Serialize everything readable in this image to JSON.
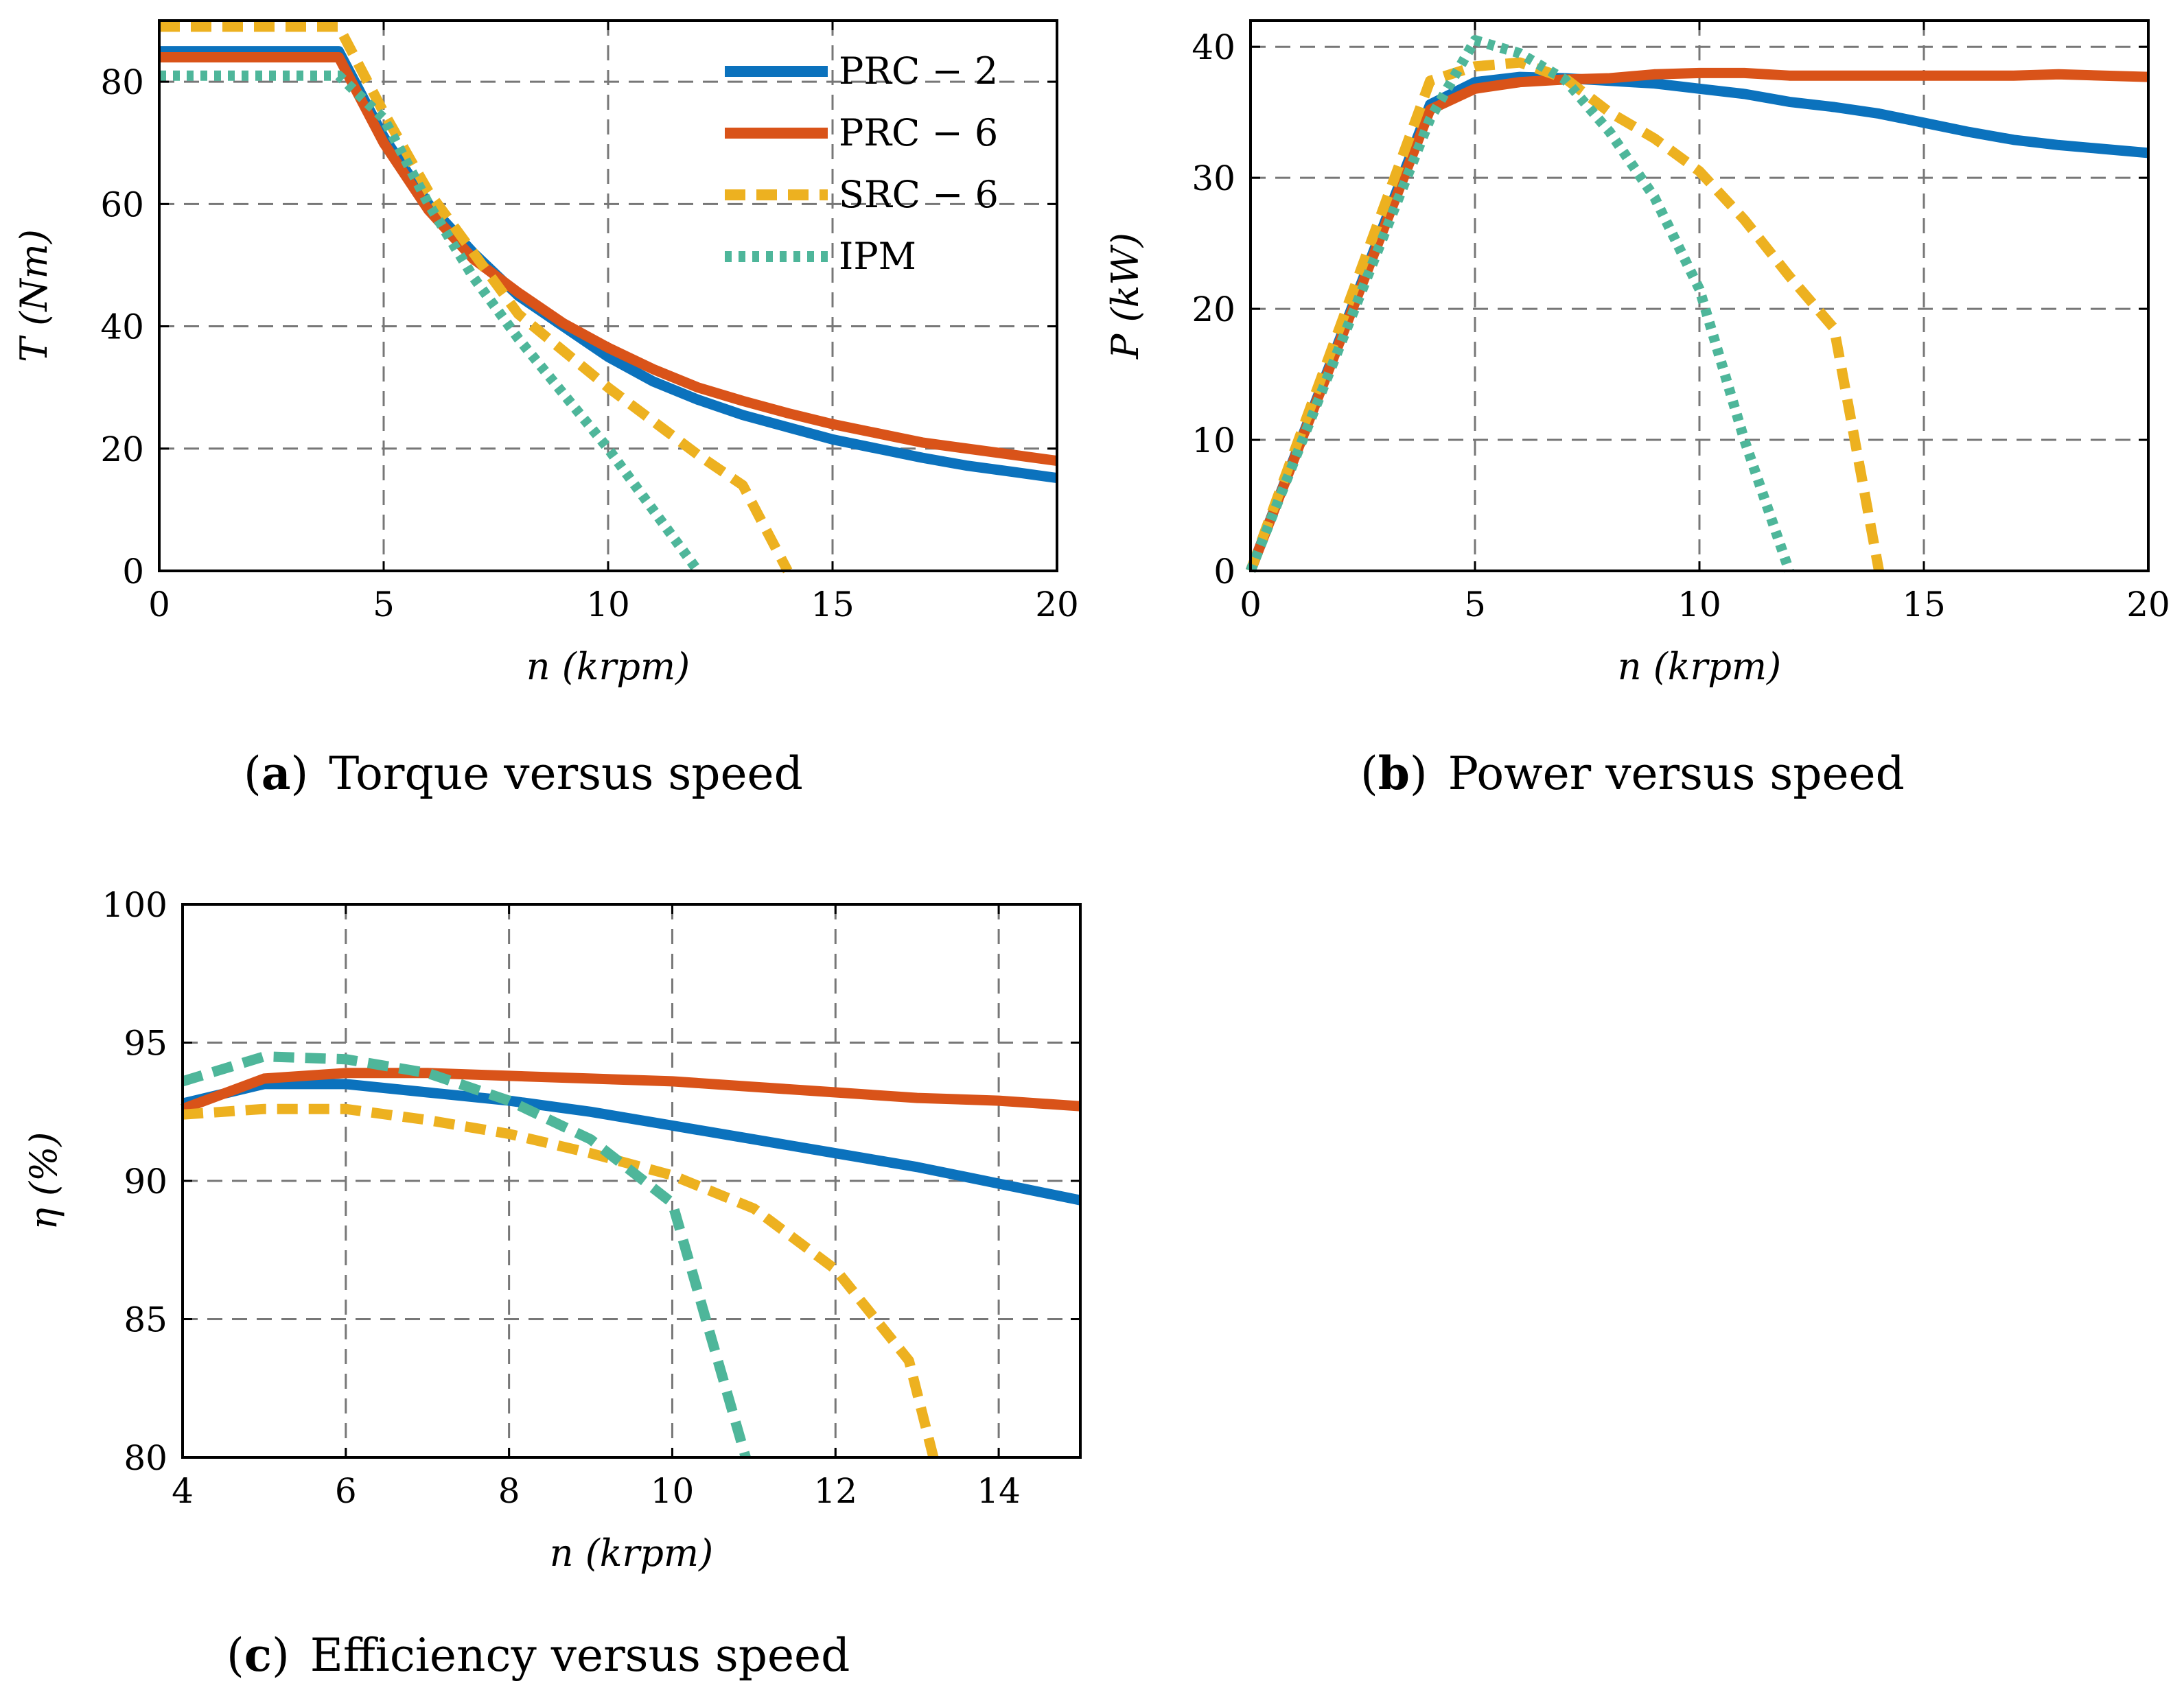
{
  "colors": {
    "PRC - 2": "#0b72bd",
    "PRC - 6": "#d95319",
    "SRC - 6": "#edb120",
    "IPM": "#4eb69a"
  },
  "legend": [
    "PRC − 2",
    "PRC − 6",
    "SRC − 6",
    "IPM"
  ],
  "chart_data": [
    {
      "id": "a",
      "type": "line",
      "caption_letter": "a",
      "caption_text": "Torque versus speed",
      "xlabel": "n (krpm)",
      "ylabel": "T (Nm)",
      "xlim": [
        0,
        20
      ],
      "ylim": [
        0,
        90
      ],
      "xticks": [
        0,
        5,
        10,
        15,
        20
      ],
      "yticks": [
        0,
        20,
        40,
        60,
        80
      ],
      "grid": true,
      "legend_position": "top-right",
      "series": [
        {
          "name": "PRC - 2",
          "style": "solid",
          "x": [
            0,
            4,
            5,
            6,
            7,
            8,
            9,
            10,
            11,
            12,
            13,
            14,
            15,
            16,
            17,
            18,
            19,
            20
          ],
          "y": [
            85,
            85,
            71,
            60,
            52,
            45,
            40,
            35,
            31,
            28,
            25.5,
            23.5,
            21.5,
            20,
            18.5,
            17.2,
            16.2,
            15.2
          ]
        },
        {
          "name": "PRC - 6",
          "style": "solid",
          "x": [
            0,
            4,
            5,
            6,
            7,
            8,
            9,
            10,
            11,
            12,
            13,
            14,
            15,
            16,
            17,
            18,
            19,
            20
          ],
          "y": [
            84,
            84,
            70,
            59,
            51,
            45.5,
            40.5,
            36.5,
            33,
            30,
            27.8,
            25.8,
            24,
            22.5,
            21,
            20,
            19,
            18
          ]
        },
        {
          "name": "SRC - 6",
          "style": "dashed",
          "x": [
            0,
            4,
            5,
            6,
            7,
            8,
            9,
            10,
            11,
            12,
            13,
            14
          ],
          "y": [
            89,
            89,
            75,
            62,
            52,
            42,
            36,
            30,
            24.5,
            19,
            14,
            0
          ]
        },
        {
          "name": "IPM",
          "style": "dotted",
          "x": [
            0,
            4,
            5,
            6,
            7,
            8,
            9,
            10,
            11,
            12
          ],
          "y": [
            81,
            81,
            74,
            60,
            48,
            38,
            29,
            20,
            10,
            0
          ]
        }
      ]
    },
    {
      "id": "b",
      "type": "line",
      "caption_letter": "b",
      "caption_text": "Power versus speed",
      "xlabel": "n (krpm)",
      "ylabel": "P (kW)",
      "xlim": [
        0,
        20
      ],
      "ylim": [
        0,
        42
      ],
      "xticks": [
        0,
        5,
        10,
        15,
        20
      ],
      "yticks": [
        0,
        10,
        20,
        30,
        40
      ],
      "grid": true,
      "legend_position": "none",
      "series": [
        {
          "name": "PRC - 2",
          "style": "solid",
          "x": [
            0,
            4,
            5,
            6,
            7,
            8,
            9,
            10,
            11,
            12,
            13,
            14,
            15,
            16,
            17,
            18,
            19,
            20
          ],
          "y": [
            0,
            35.6,
            37.3,
            37.7,
            37.6,
            37.4,
            37.2,
            36.8,
            36.4,
            35.8,
            35.4,
            34.9,
            34.2,
            33.5,
            32.9,
            32.5,
            32.2,
            31.9
          ]
        },
        {
          "name": "PRC - 6",
          "style": "solid",
          "x": [
            0,
            4,
            5,
            6,
            7,
            8,
            9,
            10,
            11,
            12,
            13,
            14,
            15,
            16,
            17,
            18,
            19,
            20
          ],
          "y": [
            0,
            35.2,
            36.8,
            37.3,
            37.5,
            37.6,
            37.9,
            38,
            38,
            37.8,
            37.8,
            37.8,
            37.8,
            37.8,
            37.8,
            37.9,
            37.8,
            37.7
          ]
        },
        {
          "name": "SRC - 6",
          "style": "dashed",
          "x": [
            0,
            4,
            5,
            6,
            7,
            8,
            9,
            10,
            11,
            12,
            13,
            14
          ],
          "y": [
            0,
            37.4,
            38.5,
            38.8,
            37.6,
            35,
            33,
            30.5,
            26.8,
            22.5,
            18.5,
            0
          ]
        },
        {
          "name": "IPM",
          "style": "dotted",
          "x": [
            0,
            4,
            5,
            6,
            7,
            8,
            9,
            10,
            11,
            12
          ],
          "y": [
            0,
            34.5,
            40.5,
            39.5,
            37.5,
            33.5,
            28.5,
            21.5,
            10,
            0
          ]
        }
      ]
    },
    {
      "id": "c",
      "type": "line",
      "caption_letter": "c",
      "caption_text": "Efficiency versus speed",
      "xlabel": "n (krpm)",
      "ylabel": "η (%)",
      "xlim": [
        4,
        15
      ],
      "ylim": [
        80,
        100
      ],
      "xticks": [
        4,
        6,
        8,
        10,
        12,
        14
      ],
      "yticks": [
        80,
        85,
        90,
        95,
        100
      ],
      "grid": true,
      "legend_position": "none",
      "series": [
        {
          "name": "PRC - 2",
          "style": "solid",
          "x": [
            4,
            5,
            6,
            7,
            8,
            9,
            10,
            11,
            12,
            13,
            14,
            15
          ],
          "y": [
            92.8,
            93.5,
            93.5,
            93.2,
            92.9,
            92.5,
            92.0,
            91.5,
            91.0,
            90.5,
            89.9,
            89.3
          ]
        },
        {
          "name": "PRC - 6",
          "style": "solid",
          "x": [
            4,
            5,
            6,
            7,
            8,
            9,
            10,
            11,
            12,
            13,
            14,
            15
          ],
          "y": [
            92.6,
            93.7,
            93.9,
            93.9,
            93.8,
            93.7,
            93.6,
            93.4,
            93.2,
            93.0,
            92.9,
            92.7
          ]
        },
        {
          "name": "SRC - 6",
          "style": "dashed",
          "x": [
            4,
            5,
            6,
            7,
            8,
            9,
            10,
            11,
            12,
            12.9,
            13.2
          ],
          "y": [
            92.4,
            92.6,
            92.6,
            92.2,
            91.7,
            91.0,
            90.2,
            89.0,
            86.8,
            83.5,
            80
          ]
        },
        {
          "name": "IPM",
          "style": "dashed",
          "x": [
            4,
            5,
            6,
            7,
            8,
            9,
            10,
            10.9
          ],
          "y": [
            93.6,
            94.5,
            94.4,
            93.9,
            92.9,
            91.5,
            89.2,
            80
          ]
        }
      ]
    }
  ]
}
